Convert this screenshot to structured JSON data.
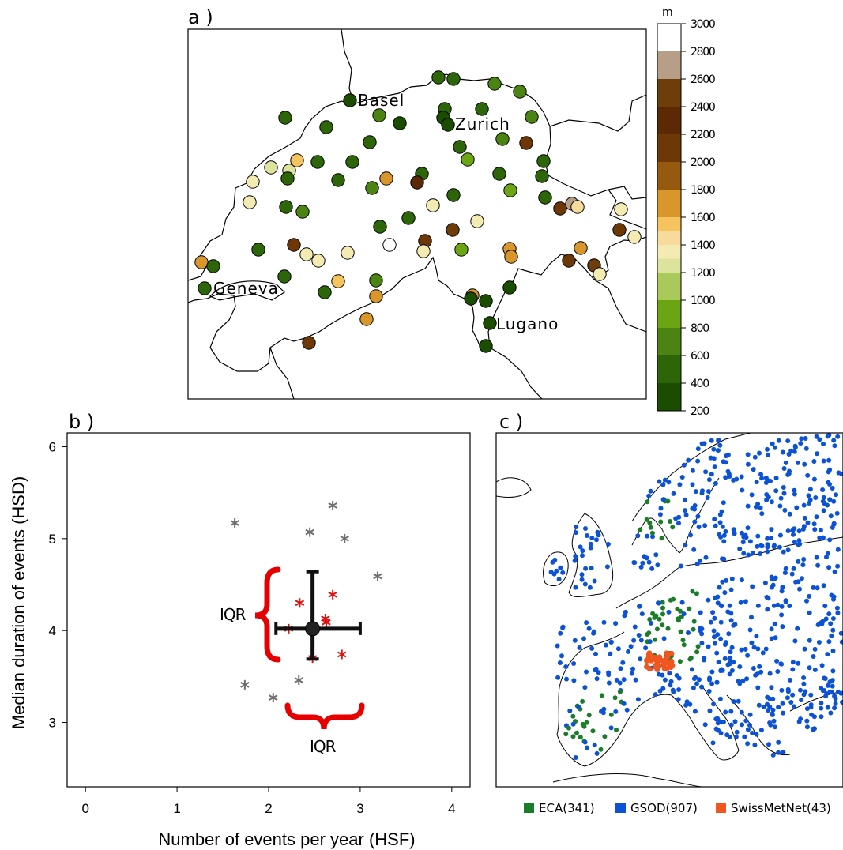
{
  "panels": {
    "a": {
      "label": "a )"
    },
    "b": {
      "label": "b )"
    },
    "c": {
      "label": "c )"
    }
  },
  "chart_data": [
    {
      "panel": "a",
      "type": "scatter",
      "title": "",
      "city_labels": [
        "Basel",
        "Zurich",
        "Geneva",
        "Lugano"
      ],
      "colorbar": {
        "unit": "m",
        "ticks": [
          200,
          400,
          600,
          800,
          1000,
          1200,
          1400,
          1600,
          1800,
          2000,
          2200,
          2400,
          2600,
          2800,
          3000
        ],
        "colors": [
          "#1b4d00",
          "#2c6609",
          "#4c8413",
          "#6ca514",
          "#a9c95a",
          "#dde39c",
          "#f4ebb3",
          "#f7db9c",
          "#f5c45f",
          "#d9962b",
          "#955a10",
          "#6e3806",
          "#5b2a04",
          "#6d3d0a",
          "#b69e88",
          "#ffffff"
        ],
        "color_breaks": [
          200,
          400,
          600,
          800,
          1000,
          1200,
          1300,
          1400,
          1500,
          1600,
          1800,
          2000,
          2200,
          2400,
          2600,
          2800,
          3000
        ]
      },
      "stations_elevation_m": [
        [
          555,
          98,
          450
        ],
        [
          574,
          100,
          450
        ],
        [
          626,
          106,
          650
        ],
        [
          658,
          116,
          600
        ],
        [
          443,
          127,
          300
        ],
        [
          361,
          149,
          450
        ],
        [
          413,
          161,
          500
        ],
        [
          480,
          146,
          650
        ],
        [
          506,
          156,
          300
        ],
        [
          563,
          138,
          450
        ],
        [
          561,
          149,
          350
        ],
        [
          567,
          158,
          350
        ],
        [
          610,
          138,
          450
        ],
        [
          673,
          148,
          650
        ],
        [
          468,
          180,
          500
        ],
        [
          582,
          186,
          500
        ],
        [
          592,
          202,
          850
        ],
        [
          636,
          176,
          650
        ],
        [
          666,
          181,
          2100
        ],
        [
          688,
          204,
          450
        ],
        [
          343,
          212,
          1200
        ],
        [
          366,
          216,
          1200
        ],
        [
          376,
          203,
          1500
        ],
        [
          402,
          205,
          500
        ],
        [
          446,
          205,
          500
        ],
        [
          320,
          230,
          1300
        ],
        [
          364,
          226,
          500
        ],
        [
          428,
          228,
          500
        ],
        [
          471,
          238,
          700
        ],
        [
          489,
          226,
          1600
        ],
        [
          534,
          220,
          500
        ],
        [
          528,
          231,
          2200
        ],
        [
          574,
          247,
          500
        ],
        [
          632,
          220,
          500
        ],
        [
          646,
          241,
          800
        ],
        [
          686,
          223,
          450
        ],
        [
          316,
          256,
          1300
        ],
        [
          362,
          262,
          500
        ],
        [
          383,
          268,
          700
        ],
        [
          481,
          287,
          500
        ],
        [
          517,
          276,
          500
        ],
        [
          548,
          260,
          1300
        ],
        [
          573,
          291,
          2400
        ],
        [
          604,
          280,
          1300
        ],
        [
          690,
          250,
          500
        ],
        [
          709,
          264,
          2100
        ],
        [
          724,
          258,
          2700
        ],
        [
          731,
          262,
          1400
        ],
        [
          786,
          265,
          1300
        ],
        [
          784,
          291,
          2100
        ],
        [
          803,
          300,
          1300
        ],
        [
          255,
          332,
          1700
        ],
        [
          270,
          337,
          500
        ],
        [
          327,
          316,
          500
        ],
        [
          372,
          310,
          2000
        ],
        [
          388,
          322,
          1300
        ],
        [
          403,
          330,
          1300
        ],
        [
          440,
          320,
          1300
        ],
        [
          493,
          310,
          3000
        ],
        [
          538,
          305,
          2000
        ],
        [
          536,
          318,
          1300
        ],
        [
          584,
          316,
          800
        ],
        [
          645,
          315,
          1700
        ],
        [
          647,
          325,
          1700
        ],
        [
          735,
          314,
          1700
        ],
        [
          720,
          330,
          2000
        ],
        [
          752,
          336,
          2400
        ],
        [
          759,
          347,
          1300
        ],
        [
          259,
          365,
          500
        ],
        [
          360,
          350,
          450
        ],
        [
          428,
          356,
          1500
        ],
        [
          476,
          355,
          650
        ],
        [
          411,
          370,
          500
        ],
        [
          476,
          375,
          1700
        ],
        [
          598,
          374,
          1700
        ],
        [
          596,
          378,
          350
        ],
        [
          615,
          381,
          350
        ],
        [
          645,
          364,
          350
        ],
        [
          464,
          404,
          1700
        ],
        [
          620,
          409,
          300
        ],
        [
          391,
          434,
          2000
        ],
        [
          615,
          438,
          300
        ]
      ]
    },
    {
      "panel": "b",
      "type": "scatter",
      "title": "",
      "xlabel": "Number of events per year (HSF)",
      "ylabel": "Median duration of events (HSD)",
      "xlim": [
        -0.2,
        4.2
      ],
      "ylim": [
        2.3,
        6.15
      ],
      "xticks": [
        "0",
        "1",
        "2",
        "3",
        "4"
      ],
      "yticks": [
        "3",
        "4",
        "5",
        "6"
      ],
      "outer_points": [
        [
          1.63,
          5.17
        ],
        [
          2.45,
          5.07
        ],
        [
          2.7,
          5.36
        ],
        [
          2.83,
          5.0
        ],
        [
          3.19,
          4.59
        ],
        [
          1.74,
          3.41
        ],
        [
          2.05,
          3.27
        ],
        [
          2.33,
          3.46
        ]
      ],
      "iqr_points": [
        [
          2.34,
          4.3
        ],
        [
          2.7,
          4.39
        ],
        [
          2.22,
          4.02
        ],
        [
          2.62,
          4.13
        ],
        [
          2.63,
          4.09
        ],
        [
          2.8,
          3.74
        ],
        [
          2.48,
          3.7
        ]
      ],
      "median": [
        2.48,
        4.02
      ],
      "iqr_x": [
        2.08,
        3.0
      ],
      "iqr_y": [
        3.69,
        4.64
      ],
      "brace_labels": [
        "IQR",
        "IQR"
      ]
    },
    {
      "panel": "c",
      "type": "scatter",
      "title": "",
      "legend": [
        {
          "label": "ECA(341)",
          "color": "#1a7d2a"
        },
        {
          "label": "GSOD(907)",
          "color": "#0c52d6"
        },
        {
          "label": "SwissMetNet(43)",
          "color": "#f1561e"
        }
      ],
      "legend_position": "bottom"
    }
  ]
}
